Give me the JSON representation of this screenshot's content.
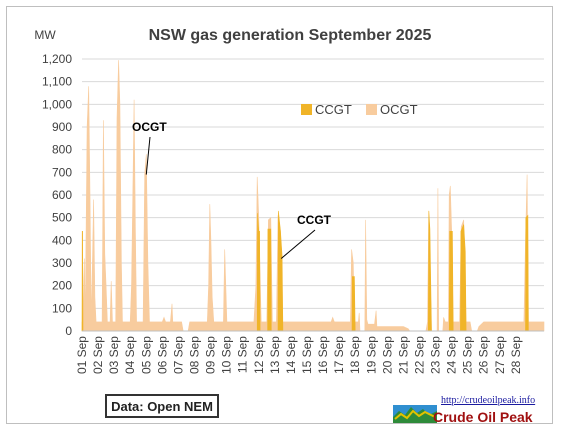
{
  "chart_data": {
    "type": "area",
    "title": "NSW gas generation September  2025",
    "ylabel": "MW",
    "ylim": [
      0,
      1200
    ],
    "yticks": [
      "0",
      "100",
      "200",
      "300",
      "400",
      "500",
      "600",
      "700",
      "800",
      "900",
      "1,000",
      "1,100",
      "1,200"
    ],
    "xlim": [
      1,
      29.75
    ],
    "xticks": [
      "01 Sep",
      "02 Sep",
      "03 Sep",
      "04 Sep",
      "05 Sep",
      "06 Sep",
      "07 Sep",
      "08 Sep",
      "09 Sep",
      "10 Sep",
      "11 Sep",
      "12 Sep",
      "13 Sep",
      "14 Sep",
      "15 Sep",
      "16 Sep",
      "17 Sep",
      "18 Sep",
      "19 Sep",
      "20 Sep",
      "21 Sep",
      "22 Sep",
      "23 Sep",
      "24 Sep",
      "25 Sep",
      "26 Sep",
      "27 Sep",
      "28 Sep"
    ],
    "grid": true,
    "legend": "top-right",
    "series": [
      {
        "name": "CCGT",
        "color": "#f0b428",
        "points": [
          [
            1,
            0
          ],
          [
            1.01,
            440
          ],
          [
            1.04,
            440
          ],
          [
            1.06,
            0
          ],
          [
            11.9,
            0
          ],
          [
            11.92,
            520
          ],
          [
            12.0,
            440
          ],
          [
            12.05,
            440
          ],
          [
            12.08,
            0
          ],
          [
            12.55,
            0
          ],
          [
            12.57,
            450
          ],
          [
            12.75,
            450
          ],
          [
            12.78,
            0
          ],
          [
            13.2,
            0
          ],
          [
            13.22,
            530
          ],
          [
            13.35,
            440
          ],
          [
            13.45,
            330
          ],
          [
            13.5,
            0
          ],
          [
            17.8,
            0
          ],
          [
            17.82,
            240
          ],
          [
            17.95,
            240
          ],
          [
            18.0,
            0
          ],
          [
            22.55,
            0
          ],
          [
            22.58,
            530
          ],
          [
            22.65,
            450
          ],
          [
            22.75,
            0
          ],
          [
            23.85,
            0
          ],
          [
            23.88,
            440
          ],
          [
            24.05,
            440
          ],
          [
            24.1,
            0
          ],
          [
            24.55,
            0
          ],
          [
            24.58,
            440
          ],
          [
            24.75,
            470
          ],
          [
            24.85,
            350
          ],
          [
            24.9,
            0
          ],
          [
            28.6,
            0
          ],
          [
            28.62,
            500
          ],
          [
            28.75,
            510
          ],
          [
            28.78,
            0
          ],
          [
            29.75,
            0
          ]
        ]
      },
      {
        "name": "OCGT",
        "color": "#f8cc9e",
        "points": [
          [
            1,
            40
          ],
          [
            1.05,
            40
          ],
          [
            1.15,
            320
          ],
          [
            1.2,
            40
          ],
          [
            1.32,
            900
          ],
          [
            1.42,
            1080
          ],
          [
            1.5,
            600
          ],
          [
            1.58,
            40
          ],
          [
            1.72,
            580
          ],
          [
            1.8,
            150
          ],
          [
            1.88,
            40
          ],
          [
            2.25,
            40
          ],
          [
            2.33,
            930
          ],
          [
            2.42,
            340
          ],
          [
            2.5,
            200
          ],
          [
            2.58,
            40
          ],
          [
            2.75,
            40
          ],
          [
            2.82,
            220
          ],
          [
            2.9,
            40
          ],
          [
            3.1,
            40
          ],
          [
            3.18,
            940
          ],
          [
            3.28,
            1195
          ],
          [
            3.36,
            1000
          ],
          [
            3.45,
            300
          ],
          [
            3.52,
            40
          ],
          [
            4.0,
            40
          ],
          [
            4.08,
            200
          ],
          [
            4.16,
            600
          ],
          [
            4.24,
            1020
          ],
          [
            4.32,
            450
          ],
          [
            4.4,
            40
          ],
          [
            4.8,
            40
          ],
          [
            4.9,
            690
          ],
          [
            5.0,
            780
          ],
          [
            5.1,
            300
          ],
          [
            5.2,
            40
          ],
          [
            5.5,
            40
          ],
          [
            5.8,
            40
          ],
          [
            6.0,
            40
          ],
          [
            6.1,
            60
          ],
          [
            6.2,
            40
          ],
          [
            6.5,
            40
          ],
          [
            6.6,
            120
          ],
          [
            6.65,
            40
          ],
          [
            7.2,
            40
          ],
          [
            7.3,
            0
          ],
          [
            7.6,
            0
          ],
          [
            7.7,
            40
          ],
          [
            8.8,
            40
          ],
          [
            8.88,
            200
          ],
          [
            8.95,
            560
          ],
          [
            9.02,
            400
          ],
          [
            9.1,
            150
          ],
          [
            9.2,
            40
          ],
          [
            9.8,
            40
          ],
          [
            9.88,
            360
          ],
          [
            9.95,
            200
          ],
          [
            10.02,
            40
          ],
          [
            11.0,
            40
          ],
          [
            11.7,
            40
          ],
          [
            11.82,
            200
          ],
          [
            11.9,
            680
          ],
          [
            12.0,
            500
          ],
          [
            12.15,
            40
          ],
          [
            12.5,
            40
          ],
          [
            12.6,
            490
          ],
          [
            12.75,
            500
          ],
          [
            12.85,
            40
          ],
          [
            13.1,
            40
          ],
          [
            13.2,
            510
          ],
          [
            13.35,
            440
          ],
          [
            13.45,
            40
          ],
          [
            14.5,
            40
          ],
          [
            15.0,
            40
          ],
          [
            16.0,
            40
          ],
          [
            16.5,
            40
          ],
          [
            16.6,
            60
          ],
          [
            16.7,
            40
          ],
          [
            17.0,
            40
          ],
          [
            17.7,
            40
          ],
          [
            17.78,
            360
          ],
          [
            17.88,
            300
          ],
          [
            17.95,
            40
          ],
          [
            18.2,
            40
          ],
          [
            18.25,
            80
          ],
          [
            18.3,
            0
          ],
          [
            18.6,
            0
          ],
          [
            18.65,
            490
          ],
          [
            18.72,
            50
          ],
          [
            18.8,
            30
          ],
          [
            19.2,
            30
          ],
          [
            19.3,
            90
          ],
          [
            19.35,
            20
          ],
          [
            20.5,
            20
          ],
          [
            21.0,
            20
          ],
          [
            21.3,
            10
          ],
          [
            21.4,
            0
          ],
          [
            22.4,
            0
          ],
          [
            22.5,
            40
          ],
          [
            22.58,
            530
          ],
          [
            22.68,
            200
          ],
          [
            22.75,
            0
          ],
          [
            23.1,
            0
          ],
          [
            23.15,
            630
          ],
          [
            23.2,
            0
          ],
          [
            23.45,
            0
          ],
          [
            23.5,
            60
          ],
          [
            23.6,
            40
          ],
          [
            23.8,
            40
          ],
          [
            23.85,
            600
          ],
          [
            23.92,
            640
          ],
          [
            24.0,
            450
          ],
          [
            24.1,
            40
          ],
          [
            24.5,
            40
          ],
          [
            24.6,
            460
          ],
          [
            24.75,
            490
          ],
          [
            24.9,
            40
          ],
          [
            25.15,
            40
          ],
          [
            25.25,
            0
          ],
          [
            25.6,
            0
          ],
          [
            25.7,
            20
          ],
          [
            26.0,
            40
          ],
          [
            27.0,
            40
          ],
          [
            28.0,
            40
          ],
          [
            28.5,
            40
          ],
          [
            28.6,
            400
          ],
          [
            28.7,
            690
          ],
          [
            28.78,
            40
          ],
          [
            29.75,
            40
          ]
        ]
      }
    ],
    "annotations": [
      {
        "text": "OCGT",
        "target": [
          5.0,
          690
        ]
      },
      {
        "text": "CCGT",
        "target": [
          13.4,
          320
        ]
      }
    ],
    "source_note": "Data: Open NEM"
  },
  "brand": {
    "url": "http://crudeoilpeak.info",
    "name": "Crude Oil Peak"
  },
  "colors": {
    "ccgt": "#f0b428",
    "ocgt": "#f8cc9e",
    "grid": "#d9d9d9"
  }
}
